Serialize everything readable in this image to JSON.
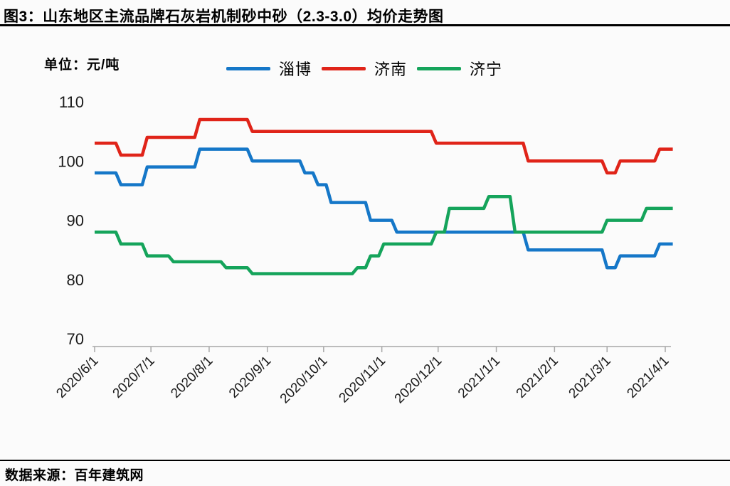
{
  "header": {
    "title": "图3：山东地区主流品牌石灰岩机制砂中砂（2.3-3.0）均价走势图"
  },
  "footer": {
    "source": "数据来源：百年建筑网"
  },
  "chart_data": {
    "type": "line",
    "subtype": "step-weekly-price-trend",
    "title": "山东地区主流品牌石灰岩机制砂中砂（2.3-3.0）均价走势图",
    "unit_label": "单位：元/吨",
    "ylabel": "元/吨",
    "ylim": [
      70,
      110
    ],
    "y_ticks": [
      110,
      100,
      90,
      80,
      70
    ],
    "grid": false,
    "legend_position": "top",
    "x_start": "2020/6/1",
    "x_interval": "weekly",
    "x_tick_labels": [
      "2020/6/1",
      "2020/7/1",
      "2020/8/1",
      "2020/9/1",
      "2020/10/1",
      "2020/11/1",
      "2020/12/1",
      "2021/1/1",
      "2021/2/1",
      "2021/3/1",
      "2021/4/1"
    ],
    "week_dates": [
      "2020/6/1",
      "2020/6/8",
      "2020/6/15",
      "2020/6/22",
      "2020/6/29",
      "2020/7/6",
      "2020/7/13",
      "2020/7/20",
      "2020/7/27",
      "2020/8/3",
      "2020/8/10",
      "2020/8/17",
      "2020/8/24",
      "2020/8/31",
      "2020/9/7",
      "2020/9/14",
      "2020/9/21",
      "2020/9/28",
      "2020/10/5",
      "2020/10/12",
      "2020/10/19",
      "2020/10/26",
      "2020/11/2",
      "2020/11/9",
      "2020/11/16",
      "2020/11/23",
      "2020/11/30",
      "2020/12/7",
      "2020/12/14",
      "2020/12/21",
      "2020/12/28",
      "2021/1/4",
      "2021/1/11",
      "2021/1/18",
      "2021/1/25",
      "2021/2/1",
      "2021/2/8",
      "2021/2/15",
      "2021/2/22",
      "2021/3/1",
      "2021/3/8",
      "2021/3/15",
      "2021/3/22",
      "2021/3/29",
      "2021/4/5"
    ],
    "series": [
      {
        "name": "淄博",
        "color": "#1577C8",
        "values": [
          98,
          98,
          96,
          96,
          99,
          99,
          99,
          99,
          102,
          102,
          102,
          102,
          100,
          100,
          100,
          100,
          98,
          96,
          93,
          93,
          93,
          90,
          90,
          88,
          88,
          88,
          88,
          88,
          88,
          88,
          88,
          88,
          88,
          85,
          85,
          85,
          85,
          85,
          85,
          82,
          84,
          84,
          84,
          86,
          86
        ]
      },
      {
        "name": "济南",
        "color": "#E02419",
        "values": [
          103,
          103,
          101,
          101,
          104,
          104,
          104,
          104,
          107,
          107,
          107,
          107,
          105,
          105,
          105,
          105,
          105,
          105,
          105,
          105,
          105,
          105,
          105,
          105,
          105,
          105,
          103,
          103,
          103,
          103,
          103,
          103,
          103,
          100,
          100,
          100,
          100,
          100,
          100,
          98,
          100,
          100,
          100,
          102,
          102
        ]
      },
      {
        "name": "济宁",
        "color": "#15A45B",
        "values": [
          88,
          88,
          86,
          86,
          84,
          84,
          83,
          83,
          83,
          83,
          82,
          82,
          81,
          81,
          81,
          81,
          81,
          81,
          81,
          81,
          82,
          84,
          86,
          86,
          86,
          86,
          88,
          92,
          92,
          92,
          94,
          94,
          88,
          88,
          88,
          88,
          88,
          88,
          88,
          90,
          90,
          90,
          92,
          92,
          92
        ]
      }
    ],
    "axis_color": "#A8A8A8",
    "text_color": "#1a1a1a"
  }
}
